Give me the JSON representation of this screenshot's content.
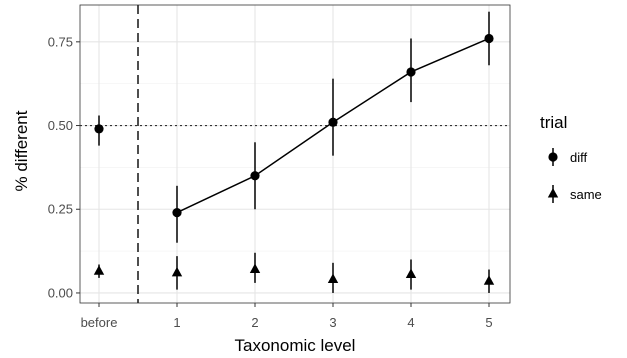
{
  "chart_data": {
    "type": "scatter",
    "xlabel": "Taxonomic level",
    "ylabel": "% different",
    "x_categories": [
      "before",
      "1",
      "2",
      "3",
      "4",
      "5"
    ],
    "y_ticks": [
      "0.00",
      "0.25",
      "0.50",
      "0.75"
    ],
    "ylim": [
      -0.03,
      0.86
    ],
    "reference_line": {
      "y": 0.5,
      "style": "dotted"
    },
    "divider": {
      "after_category": "before",
      "style": "dashed"
    },
    "grid": true,
    "legend": {
      "title": "trial",
      "position": "right"
    },
    "series": [
      {
        "name": "diff",
        "marker": "circle",
        "points": [
          {
            "x": "before",
            "y": 0.49,
            "low": 0.44,
            "high": 0.53
          },
          {
            "x": "1",
            "y": 0.24,
            "low": 0.15,
            "high": 0.32
          },
          {
            "x": "2",
            "y": 0.35,
            "low": 0.25,
            "high": 0.45
          },
          {
            "x": "3",
            "y": 0.51,
            "low": 0.41,
            "high": 0.64
          },
          {
            "x": "4",
            "y": 0.66,
            "low": 0.57,
            "high": 0.76
          },
          {
            "x": "5",
            "y": 0.76,
            "low": 0.68,
            "high": 0.84
          }
        ],
        "line_from": "1"
      },
      {
        "name": "same",
        "marker": "triangle",
        "points": [
          {
            "x": "before",
            "y": 0.065,
            "low": 0.045,
            "high": 0.085
          },
          {
            "x": "1",
            "y": 0.06,
            "low": 0.01,
            "high": 0.11
          },
          {
            "x": "2",
            "y": 0.07,
            "low": 0.03,
            "high": 0.12
          },
          {
            "x": "3",
            "y": 0.04,
            "low": 0.0,
            "high": 0.09
          },
          {
            "x": "4",
            "y": 0.055,
            "low": 0.01,
            "high": 0.1
          },
          {
            "x": "5",
            "y": 0.035,
            "low": 0.0,
            "high": 0.07
          }
        ]
      }
    ]
  }
}
